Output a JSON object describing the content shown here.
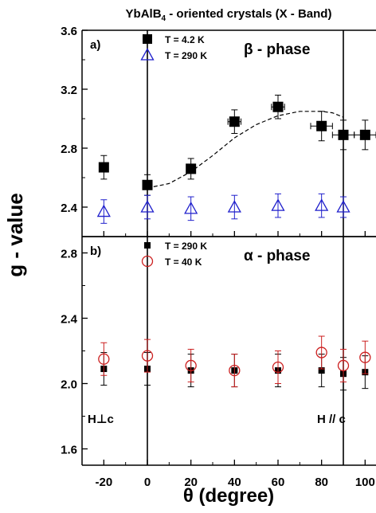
{
  "title": "YbAlB",
  "title_sub": "4",
  "title_rest": " - oriented crystals (X - Band)",
  "ylabel": "g - value",
  "xlabel": "θ (degree)",
  "x_ticks": [
    "-20",
    "0",
    "20",
    "40",
    "60",
    "80",
    "100"
  ],
  "bottom_annotations": {
    "left": "H⊥c",
    "right": "H // c"
  },
  "chart_data": [
    {
      "type": "scatter",
      "panel_label": "a)",
      "phase_label": "β - phase",
      "xlim": [
        -30,
        105
      ],
      "ylim": [
        2.2,
        3.6
      ],
      "y_ticks": [
        2.4,
        2.8,
        3.2,
        3.6
      ],
      "y_tick_labels": [
        "2.4",
        "2.8",
        "3.2",
        "3.6"
      ],
      "vlines": [
        0,
        90
      ],
      "series": [
        {
          "name": "T = 4.2 K",
          "marker": "filled-square",
          "color": "#000000",
          "points": [
            {
              "x": -20,
              "y": 2.67,
              "yerr": 0.08
            },
            {
              "x": 0,
              "y": 2.55,
              "yerr": 0.07
            },
            {
              "x": 20,
              "y": 2.66,
              "yerr": 0.07
            },
            {
              "x": 40,
              "y": 2.98,
              "yerr": 0.08,
              "xerr": 3
            },
            {
              "x": 60,
              "y": 3.08,
              "yerr": 0.08,
              "xerr": 3
            },
            {
              "x": 80,
              "y": 2.95,
              "yerr": 0.1,
              "xerr": 5
            },
            {
              "x": 90,
              "y": 2.89,
              "yerr": 0.1,
              "xerr": 5
            },
            {
              "x": 100,
              "y": 2.89,
              "yerr": 0.1,
              "xerr": 5
            }
          ]
        },
        {
          "name": "T = 290 K",
          "marker": "open-triangle",
          "color": "#1f1fcc",
          "points": [
            {
              "x": -20,
              "y": 2.37,
              "yerr": 0.08
            },
            {
              "x": 0,
              "y": 2.4,
              "yerr": 0.08
            },
            {
              "x": 20,
              "y": 2.39,
              "yerr": 0.08
            },
            {
              "x": 40,
              "y": 2.4,
              "yerr": 0.08
            },
            {
              "x": 60,
              "y": 2.41,
              "yerr": 0.08
            },
            {
              "x": 80,
              "y": 2.41,
              "yerr": 0.08
            },
            {
              "x": 90,
              "y": 2.4,
              "yerr": 0.07
            }
          ]
        }
      ],
      "fit_curve": {
        "style": "dashed",
        "points": [
          [
            0,
            2.53
          ],
          [
            10,
            2.56
          ],
          [
            20,
            2.64
          ],
          [
            30,
            2.75
          ],
          [
            40,
            2.87
          ],
          [
            50,
            2.96
          ],
          [
            60,
            3.02
          ],
          [
            70,
            3.05
          ],
          [
            80,
            3.05
          ],
          [
            85,
            3.04
          ],
          [
            90,
            3.01
          ]
        ]
      }
    },
    {
      "type": "scatter",
      "panel_label": "b)",
      "phase_label": "α - phase",
      "xlim": [
        -30,
        105
      ],
      "ylim": [
        1.5,
        2.9
      ],
      "y_ticks": [
        1.6,
        2.0,
        2.4,
        2.8
      ],
      "y_tick_labels": [
        "1.6",
        "2.0",
        "2.4",
        "2.8"
      ],
      "vlines": [
        0,
        90
      ],
      "series": [
        {
          "name": "T = 290 K",
          "marker": "filled-square-small",
          "color": "#000000",
          "points": [
            {
              "x": -20,
              "y": 2.09,
              "yerr": 0.1
            },
            {
              "x": 0,
              "y": 2.09,
              "yerr": 0.1
            },
            {
              "x": 20,
              "y": 2.08,
              "yerr": 0.1
            },
            {
              "x": 40,
              "y": 2.08,
              "yerr": 0.1
            },
            {
              "x": 60,
              "y": 2.08,
              "yerr": 0.1
            },
            {
              "x": 80,
              "y": 2.08,
              "yerr": 0.1
            },
            {
              "x": 90,
              "y": 2.06,
              "yerr": 0.1
            },
            {
              "x": 100,
              "y": 2.07,
              "yerr": 0.1
            }
          ]
        },
        {
          "name": "T = 40 K",
          "marker": "open-circle",
          "color": "#cc1f1f",
          "points": [
            {
              "x": -20,
              "y": 2.15,
              "yerr": 0.1
            },
            {
              "x": 0,
              "y": 2.17,
              "yerr": 0.1
            },
            {
              "x": 20,
              "y": 2.11,
              "yerr": 0.1
            },
            {
              "x": 40,
              "y": 2.08,
              "yerr": 0.1
            },
            {
              "x": 60,
              "y": 2.1,
              "yerr": 0.1
            },
            {
              "x": 80,
              "y": 2.19,
              "yerr": 0.1
            },
            {
              "x": 90,
              "y": 2.11,
              "yerr": 0.1
            },
            {
              "x": 100,
              "y": 2.16,
              "yerr": 0.1
            }
          ]
        }
      ]
    }
  ]
}
